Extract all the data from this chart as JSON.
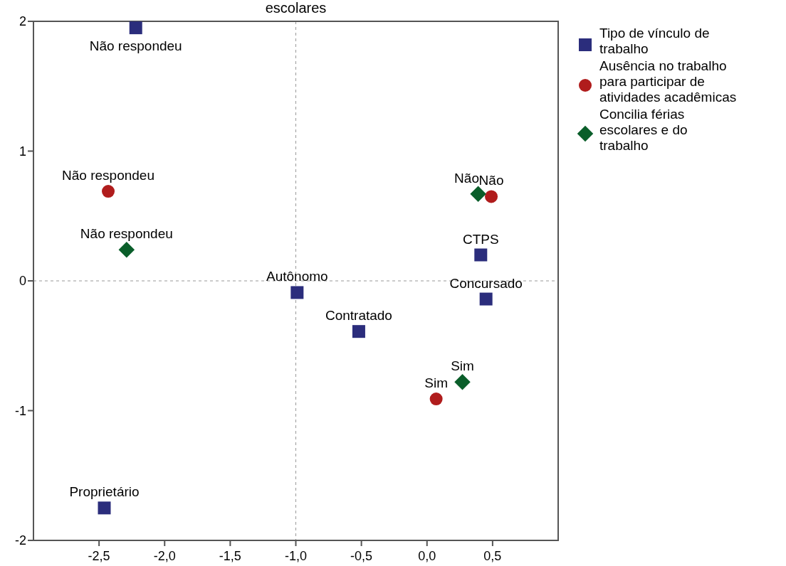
{
  "chart_data": {
    "type": "scatter",
    "title": "escolares",
    "xlim": [
      -3,
      1
    ],
    "ylim": [
      -2,
      2
    ],
    "xticks": [
      {
        "value": -2.5,
        "label": "-2,5"
      },
      {
        "value": -2,
        "label": "-2,0"
      },
      {
        "value": -1.5,
        "label": "-1,5"
      },
      {
        "value": -1,
        "label": "-1,0"
      },
      {
        "value": -0.5,
        "label": "-0,5"
      },
      {
        "value": 0,
        "label": "0,0"
      },
      {
        "value": 0.5,
        "label": "0,5"
      }
    ],
    "yticks": [
      -2,
      -1,
      0,
      1,
      2
    ],
    "grid": false,
    "legend": "right",
    "ref_lines": [
      {
        "axis": "x",
        "value": -1,
        "line_style": "dashed",
        "color": "#999999"
      },
      {
        "axis": "y",
        "value": 0,
        "line_style": "dashed",
        "color": "#999999"
      }
    ],
    "series": [
      {
        "name": "Tipo de vínculo de trabalho",
        "color": "#2b2d7c",
        "marker": "square",
        "x": [
          -2.22,
          -0.99,
          -0.52,
          0.41,
          0.45,
          -2.46
        ],
        "values": [
          1.95,
          -0.09,
          -0.39,
          0.2,
          -0.14,
          -1.75
        ]
      },
      {
        "name": "Ausência no trabalho para participar de atividades acadêmicas",
        "color": "#b01c1c",
        "marker": "circle",
        "x": [
          -2.43,
          0.49,
          0.07
        ],
        "values": [
          0.69,
          0.65,
          -0.91
        ]
      },
      {
        "name": "Concilia férias escolares e do trabalho",
        "color": "#0a5e2a",
        "marker": "diamond",
        "x": [
          -2.29,
          0.39,
          0.27
        ],
        "values": [
          0.24,
          0.67,
          -0.78
        ]
      }
    ],
    "annotations": [
      {
        "text": "Não respondeu",
        "x": -2.22,
        "y": 1.95
      },
      {
        "text": "Autônomo",
        "x": -0.99,
        "y": -0.09
      },
      {
        "text": "Contratado",
        "x": -0.52,
        "y": -0.39
      },
      {
        "text": "CTPS",
        "x": 0.41,
        "y": 0.2
      },
      {
        "text": "Concursado",
        "x": 0.45,
        "y": -0.14
      },
      {
        "text": "Proprietário",
        "x": -2.46,
        "y": -1.75
      },
      {
        "text": "Não respondeu",
        "x": -2.43,
        "y": 0.69
      },
      {
        "text": "Não",
        "x": 0.49,
        "y": 0.65
      },
      {
        "text": "Sim",
        "x": 0.07,
        "y": -0.91
      },
      {
        "text": "Não respondeu",
        "x": -2.29,
        "y": 0.24
      },
      {
        "text": "Não",
        "x": 0.39,
        "y": 0.67
      },
      {
        "text": "Sim",
        "x": 0.27,
        "y": -0.78
      }
    ]
  }
}
